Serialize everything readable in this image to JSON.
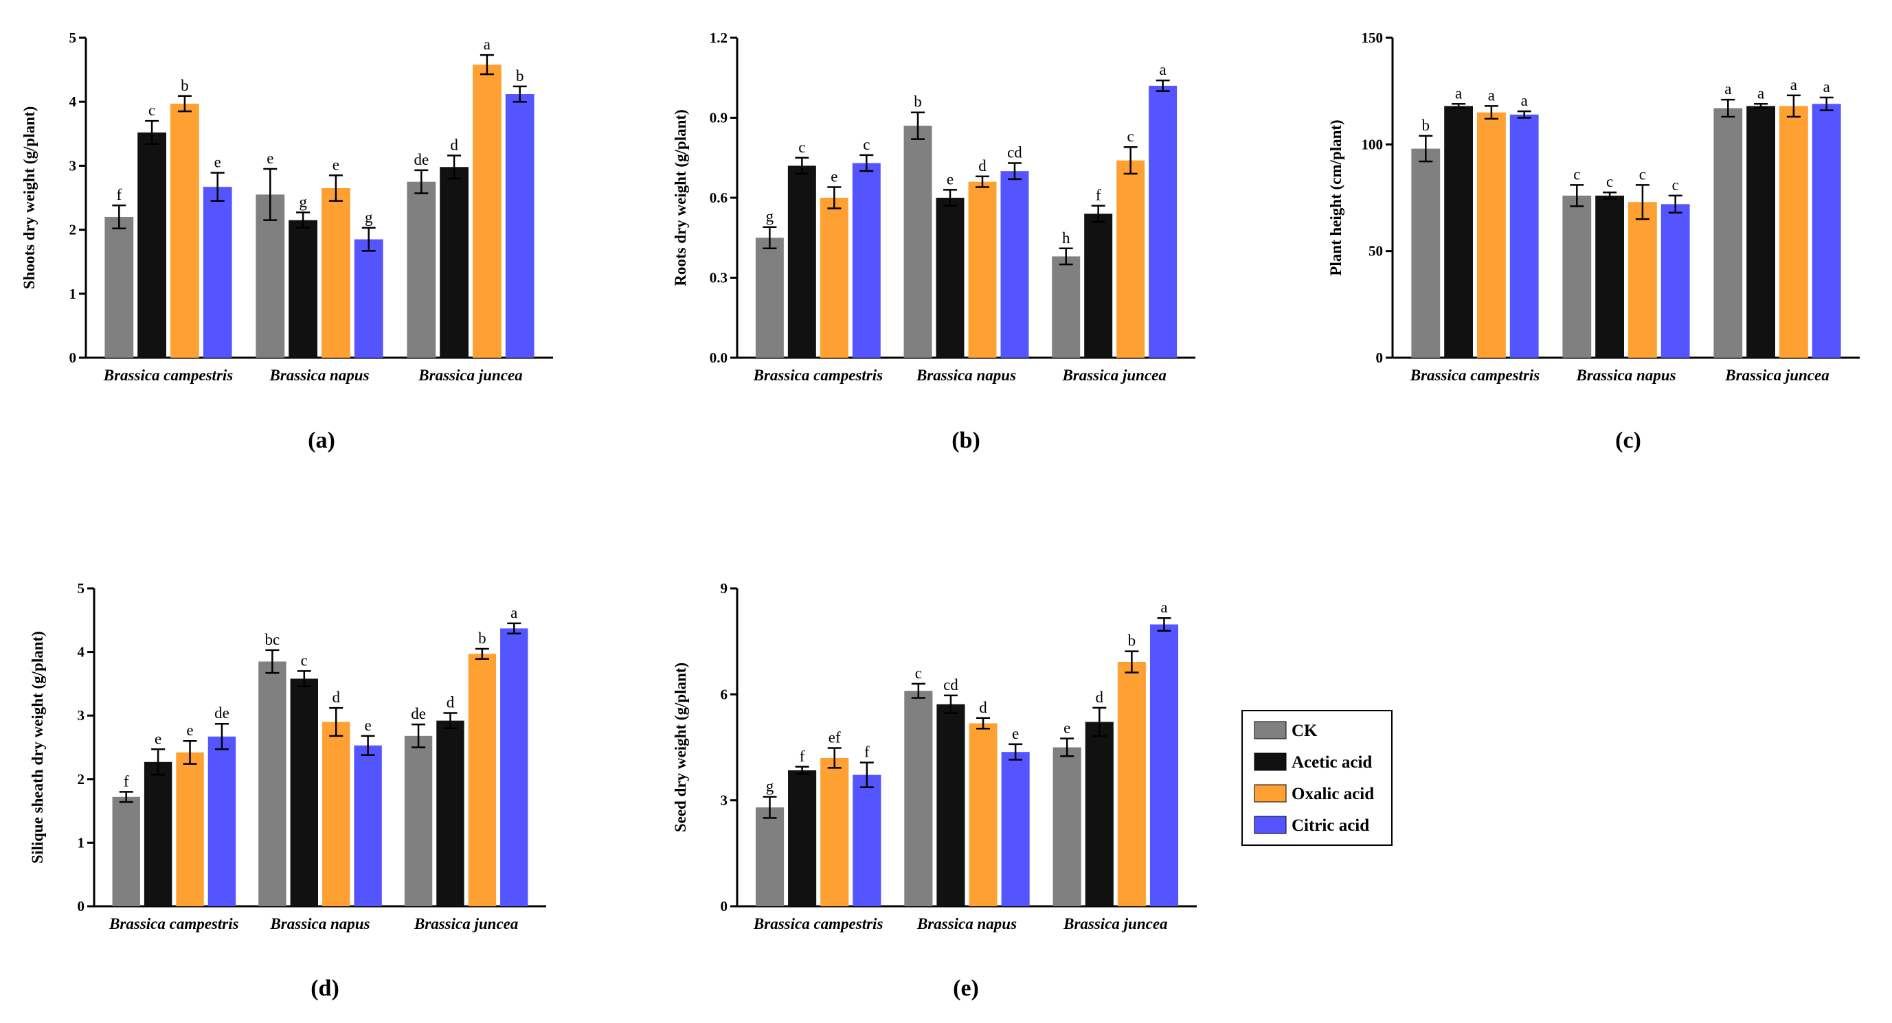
{
  "colors": {
    "CK": "#808080",
    "Acetic acid": "#111111",
    "Oxalic acid": "#FFA033",
    "Citric acid": "#5555FF"
  },
  "legend": {
    "placement": "right-of-bottom-row",
    "entries": [
      "CK",
      "Acetic acid",
      "Oxalic acid",
      "Citric acid"
    ]
  },
  "chart_data": [
    {
      "type": "bar",
      "panel_label": "(a)",
      "ylabel": "Shoots dry weight (g/plant)",
      "ylim": [
        0,
        5
      ],
      "yticks": [
        "0",
        "1",
        "2",
        "3",
        "4",
        "5"
      ],
      "yticks_values": [
        0,
        1,
        2,
        3,
        4,
        5
      ],
      "categories": [
        "Brassica campestris",
        "Brassica napus",
        "Brassica juncea"
      ],
      "series": [
        {
          "name": "CK",
          "values": [
            2.2,
            2.55,
            2.75
          ],
          "errors": [
            0.18,
            0.4,
            0.18
          ],
          "letters": [
            "f",
            "e",
            "de"
          ]
        },
        {
          "name": "Acetic acid",
          "values": [
            3.52,
            2.15,
            2.98
          ],
          "errors": [
            0.18,
            0.12,
            0.18
          ],
          "letters": [
            "c",
            "g",
            "d"
          ]
        },
        {
          "name": "Oxalic acid",
          "values": [
            3.97,
            2.65,
            4.58
          ],
          "errors": [
            0.12,
            0.2,
            0.15
          ],
          "letters": [
            "b",
            "e",
            "a"
          ]
        },
        {
          "name": "Citric acid",
          "values": [
            2.67,
            1.85,
            4.12
          ],
          "errors": [
            0.22,
            0.18,
            0.12
          ],
          "letters": [
            "e",
            "g",
            "b"
          ]
        }
      ]
    },
    {
      "type": "bar",
      "panel_label": "(b)",
      "ylabel": "Roots dry weight (g/plant)",
      "ylim": [
        0,
        1.2
      ],
      "yticks": [
        "0.0",
        "0.3",
        "0.6",
        "0.9",
        "1.2"
      ],
      "yticks_values": [
        0,
        0.3,
        0.6,
        0.9,
        1.2
      ],
      "categories": [
        "Brassica campestris",
        "Brassica napus",
        "Brassica juncea"
      ],
      "series": [
        {
          "name": "CK",
          "values": [
            0.45,
            0.87,
            0.38
          ],
          "errors": [
            0.04,
            0.05,
            0.03
          ],
          "letters": [
            "g",
            "b",
            "h"
          ]
        },
        {
          "name": "Acetic acid",
          "values": [
            0.72,
            0.6,
            0.54
          ],
          "errors": [
            0.03,
            0.03,
            0.03
          ],
          "letters": [
            "c",
            "e",
            "f"
          ]
        },
        {
          "name": "Oxalic acid",
          "values": [
            0.6,
            0.66,
            0.74
          ],
          "errors": [
            0.04,
            0.02,
            0.05
          ],
          "letters": [
            "e",
            "d",
            "c"
          ]
        },
        {
          "name": "Citric acid",
          "values": [
            0.73,
            0.7,
            1.02
          ],
          "errors": [
            0.03,
            0.03,
            0.02
          ],
          "letters": [
            "c",
            "cd",
            "a"
          ]
        }
      ]
    },
    {
      "type": "bar",
      "panel_label": "(c)",
      "ylabel": "Plant height (cm/plant)",
      "ylim": [
        0,
        150
      ],
      "yticks": [
        "0",
        "50",
        "100",
        "150"
      ],
      "yticks_values": [
        0,
        50,
        100,
        150
      ],
      "categories": [
        "Brassica campestris",
        "Brassica napus",
        "Brassica juncea"
      ],
      "series": [
        {
          "name": "CK",
          "values": [
            98,
            76,
            117
          ],
          "errors": [
            6,
            5,
            4
          ],
          "letters": [
            "b",
            "c",
            "a"
          ]
        },
        {
          "name": "Acetic acid",
          "values": [
            118,
            76,
            118
          ],
          "errors": [
            1,
            1.5,
            1
          ],
          "letters": [
            "a",
            "c",
            "a"
          ]
        },
        {
          "name": "Oxalic acid",
          "values": [
            115,
            73,
            118
          ],
          "errors": [
            3,
            8,
            5
          ],
          "letters": [
            "a",
            "c",
            "a"
          ]
        },
        {
          "name": "Citric acid",
          "values": [
            114,
            72,
            119
          ],
          "errors": [
            1.5,
            4,
            3
          ],
          "letters": [
            "a",
            "c",
            "a"
          ]
        }
      ]
    },
    {
      "type": "bar",
      "panel_label": "(d)",
      "ylabel": "Silique sheath dry weight (g/plant)",
      "ylim": [
        0,
        5
      ],
      "yticks": [
        "0",
        "1",
        "2",
        "3",
        "4",
        "5"
      ],
      "yticks_values": [
        0,
        1,
        2,
        3,
        4,
        5
      ],
      "categories": [
        "Brassica campestris",
        "Brassica napus",
        "Brassica juncea"
      ],
      "series": [
        {
          "name": "CK",
          "values": [
            1.72,
            3.85,
            2.68
          ],
          "errors": [
            0.08,
            0.18,
            0.18
          ],
          "letters": [
            "f",
            "bc",
            "de"
          ]
        },
        {
          "name": "Acetic acid",
          "values": [
            2.27,
            3.58,
            2.92
          ],
          "errors": [
            0.2,
            0.12,
            0.12
          ],
          "letters": [
            "e",
            "c",
            "d"
          ]
        },
        {
          "name": "Oxalic acid",
          "values": [
            2.42,
            2.9,
            3.97
          ],
          "errors": [
            0.18,
            0.22,
            0.08
          ],
          "letters": [
            "e",
            "d",
            "b"
          ]
        },
        {
          "name": "Citric acid",
          "values": [
            2.67,
            2.53,
            4.37
          ],
          "errors": [
            0.2,
            0.15,
            0.08
          ],
          "letters": [
            "de",
            "e",
            "a"
          ]
        }
      ]
    },
    {
      "type": "bar",
      "panel_label": "(e)",
      "ylabel": "Seed  dry weight (g/plant)",
      "ylim": [
        0,
        9
      ],
      "yticks": [
        "0",
        "3",
        "6",
        "9"
      ],
      "yticks_values": [
        0,
        3,
        6,
        9
      ],
      "categories": [
        "Brassica campestris",
        "Brassica napus",
        "Brassica juncea"
      ],
      "series": [
        {
          "name": "CK",
          "values": [
            2.8,
            6.1,
            4.5
          ],
          "errors": [
            0.3,
            0.2,
            0.25
          ],
          "letters": [
            "g",
            "c",
            "e"
          ]
        },
        {
          "name": "Acetic acid",
          "values": [
            3.85,
            5.72,
            5.22
          ],
          "errors": [
            0.1,
            0.25,
            0.4
          ],
          "letters": [
            "f",
            "cd",
            "d"
          ]
        },
        {
          "name": "Oxalic acid",
          "values": [
            4.2,
            5.18,
            6.92
          ],
          "errors": [
            0.28,
            0.15,
            0.3
          ],
          "letters": [
            "ef",
            "d",
            "b"
          ]
        },
        {
          "name": "Citric acid",
          "values": [
            3.72,
            4.37,
            7.98
          ],
          "errors": [
            0.35,
            0.22,
            0.18
          ],
          "letters": [
            "f",
            "e",
            "a"
          ]
        }
      ]
    }
  ]
}
